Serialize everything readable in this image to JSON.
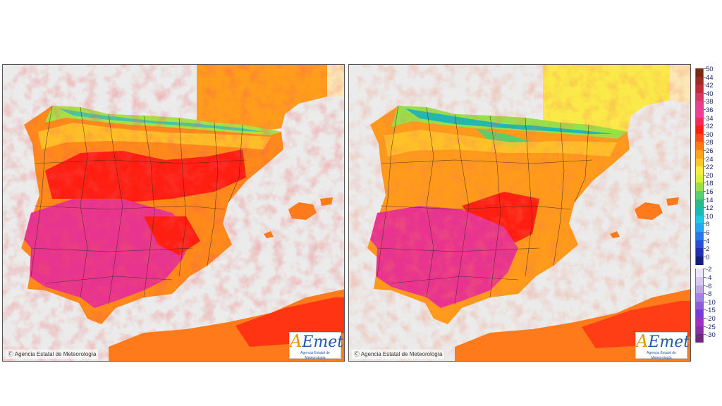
{
  "maps": [
    {
      "credit": "Agencia Estatal de Meteorología",
      "logo": "AEmet",
      "logo_sub": "Agencia Estatal de Meteorología"
    },
    {
      "credit": "Agencia Estatal de Meteorología",
      "logo": "AEmet",
      "logo_sub": "Agencia Estatal de Meteorología"
    }
  ],
  "legend": {
    "scale": [
      {
        "label": "50",
        "color": "#7b2a12"
      },
      {
        "label": "44",
        "color": "#9c2c1d"
      },
      {
        "label": "42",
        "color": "#b92f35"
      },
      {
        "label": "40",
        "color": "#d03a63"
      },
      {
        "label": "38",
        "color": "#e0428b"
      },
      {
        "label": "36",
        "color": "#ea3f9d"
      },
      {
        "label": "34",
        "color": "#ee2d5a"
      },
      {
        "label": "32",
        "color": "#ff1e12"
      },
      {
        "label": "30",
        "color": "#ff4a1a"
      },
      {
        "label": "28",
        "color": "#ff7a1a"
      },
      {
        "label": "26",
        "color": "#ffa21f"
      },
      {
        "label": "24",
        "color": "#ffc72b"
      },
      {
        "label": "22",
        "color": "#fbe949"
      },
      {
        "label": "20",
        "color": "#d8ef3e"
      },
      {
        "label": "18",
        "color": "#98e04a"
      },
      {
        "label": "16",
        "color": "#58cf6a"
      },
      {
        "label": "14",
        "color": "#2fb98a"
      },
      {
        "label": "12",
        "color": "#1fb7b5"
      },
      {
        "label": "10",
        "color": "#22c7e3"
      },
      {
        "label": "8",
        "color": "#2aa4ee"
      },
      {
        "label": "6",
        "color": "#2a78e3"
      },
      {
        "label": "4",
        "color": "#2752c9"
      },
      {
        "label": "2",
        "color": "#1f33a8"
      },
      {
        "label": "0",
        "color": "#141f78"
      },
      {
        "label": "-2",
        "color": "#ece4f7"
      },
      {
        "label": "-4",
        "color": "#d7c8f0"
      },
      {
        "label": "-6",
        "color": "#bea5ea"
      },
      {
        "label": "-8",
        "color": "#a680e3"
      },
      {
        "label": "-10",
        "color": "#8d5cdb"
      },
      {
        "label": "-15",
        "color": "#7a3bd0"
      },
      {
        "label": "-20",
        "color": "#a12fc4"
      },
      {
        "label": "-25",
        "color": "#8a2ea6"
      },
      {
        "label": "-30",
        "color": "#70287f"
      }
    ]
  }
}
